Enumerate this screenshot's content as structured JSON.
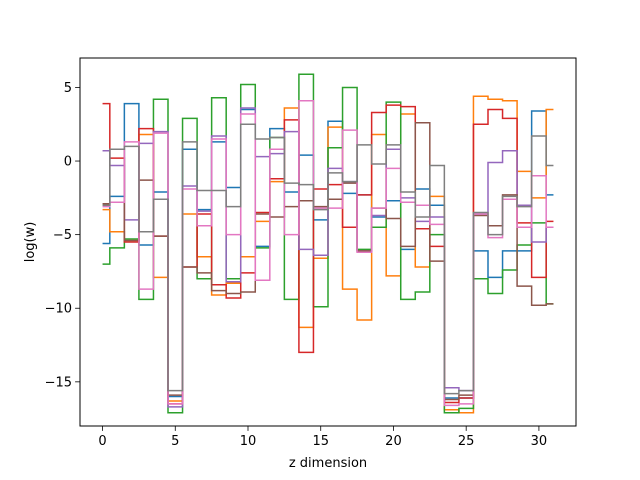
{
  "chart_data": {
    "type": "line",
    "drawstyle": "steps-mid",
    "title": "",
    "xlabel": "z dimension",
    "ylabel": "log(w)",
    "xlim": [
      -1.55,
      32.55
    ],
    "ylim": [
      -18.0,
      7.0
    ],
    "xticks": [
      0,
      5,
      10,
      15,
      20,
      25,
      30
    ],
    "yticks": [
      -15,
      -10,
      -5,
      0,
      5
    ],
    "grid": false,
    "legend": "none",
    "x": [
      0,
      1,
      2,
      3,
      4,
      5,
      6,
      7,
      8,
      9,
      10,
      11,
      12,
      13,
      14,
      15,
      16,
      17,
      18,
      19,
      20,
      21,
      22,
      23,
      24,
      25,
      26,
      27,
      28,
      29,
      30,
      31
    ],
    "series": [
      {
        "color": "#1f77b4",
        "values": [
          -5.6,
          -2.4,
          3.9,
          -5.7,
          -2.1,
          -16.0,
          0.8,
          -3.3,
          1.3,
          -1.8,
          3.5,
          -5.8,
          2.2,
          -2.1,
          0.4,
          -4.0,
          2.7,
          -2.2,
          -2.3,
          -3.8,
          -2.7,
          -6.0,
          -1.9,
          -3.0,
          -16.1,
          -16.1,
          -6.1,
          -7.9,
          -6.1,
          -6.1,
          3.4,
          -2.3
        ]
      },
      {
        "color": "#ff7f0e",
        "values": [
          -3.3,
          -4.8,
          -5.4,
          1.8,
          -7.9,
          -16.3,
          -3.6,
          -6.5,
          -9.1,
          -8.3,
          -6.5,
          -4.1,
          -1.4,
          3.6,
          -11.3,
          -6.6,
          2.3,
          -8.7,
          -10.8,
          1.8,
          -7.8,
          3.2,
          -7.2,
          -2.4,
          -16.9,
          -17.1,
          4.4,
          4.2,
          4.1,
          -0.7,
          -2.5,
          3.5
        ]
      },
      {
        "color": "#2ca02c",
        "values": [
          -7.0,
          -5.9,
          -5.3,
          -9.4,
          4.2,
          -17.1,
          2.9,
          -8.0,
          4.3,
          -8.0,
          5.2,
          -5.9,
          1.6,
          -9.4,
          5.9,
          -9.9,
          0.9,
          5.0,
          -6.0,
          -4.5,
          4.0,
          -9.4,
          -8.9,
          -5.0,
          -17.1,
          -16.8,
          -8.0,
          -9.0,
          -7.4,
          -5.7,
          -4.2,
          -9.7
        ]
      },
      {
        "color": "#d62728",
        "values": [
          3.9,
          0.2,
          -5.5,
          2.2,
          -5.1,
          -16.5,
          -7.2,
          -3.6,
          -8.4,
          -9.3,
          -7.6,
          -3.5,
          -1.2,
          2.8,
          -13.0,
          -1.9,
          -1.6,
          -4.5,
          -2.3,
          3.3,
          3.8,
          3.7,
          -4.6,
          -5.8,
          -16.4,
          -16.1,
          2.5,
          3.5,
          2.9,
          -4.2,
          -7.9,
          -4.1
        ]
      },
      {
        "color": "#9467bd",
        "values": [
          0.7,
          -0.3,
          -4.0,
          1.2,
          2.0,
          -16.7,
          -1.7,
          -3.4,
          1.7,
          -8.2,
          3.6,
          0.3,
          0.5,
          2.0,
          -6.0,
          -6.4,
          -0.5,
          -1.4,
          -6.1,
          -3.7,
          0.8,
          -2.5,
          -4.1,
          -3.8,
          -15.4,
          -15.6,
          -3.6,
          -0.1,
          0.7,
          -3.0,
          -5.5,
          -4.5
        ]
      },
      {
        "color": "#8c564b",
        "values": [
          -2.9,
          0.8,
          -5.4,
          -1.3,
          -5.1,
          -15.9,
          -7.2,
          -7.6,
          -8.8,
          -9.0,
          -8.9,
          -3.6,
          -3.8,
          -3.1,
          -2.7,
          -3.1,
          -2.6,
          -1.5,
          -6.1,
          -3.2,
          -3.9,
          -5.8,
          2.6,
          -6.8,
          -16.2,
          -15.9,
          -3.7,
          -4.4,
          -2.3,
          -8.5,
          -9.8,
          -9.7
        ]
      },
      {
        "color": "#e377c2",
        "values": [
          -3.1,
          -2.8,
          1.3,
          -8.7,
          1.9,
          -16.5,
          -1.9,
          -4.4,
          1.5,
          -5.0,
          3.2,
          -8.1,
          0.8,
          -5.0,
          4.1,
          -3.2,
          -3.2,
          2.1,
          -6.2,
          -3.2,
          -0.5,
          -2.8,
          -3.0,
          -4.3,
          -16.6,
          -16.5,
          -3.6,
          -5.2,
          -2.6,
          -4.5,
          -1.0,
          -4.5
        ]
      },
      {
        "color": "#7f7f7f",
        "values": [
          -3.0,
          0.8,
          1.0,
          -4.8,
          -2.6,
          -15.6,
          1.3,
          -2.0,
          -2.0,
          -3.1,
          2.5,
          1.5,
          1.6,
          -1.5,
          -1.6,
          -3.3,
          -0.8,
          -1.4,
          1.1,
          -0.2,
          1.1,
          -2.1,
          -3.8,
          -0.3,
          -15.8,
          -15.6,
          -3.5,
          -5.0,
          -2.4,
          -3.1,
          1.7,
          -0.3
        ]
      }
    ]
  }
}
